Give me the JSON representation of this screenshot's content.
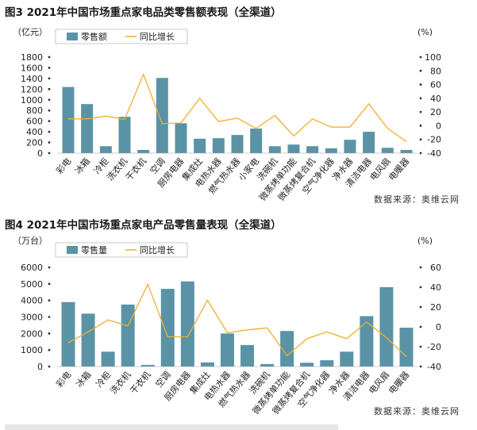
{
  "charts": [
    {
      "figure_title": "图3  2021年中国市场重点家电品类零售额表现（全渠道）",
      "source": "数据来源：奥维云网",
      "left_unit": "（亿元）",
      "right_unit": "(%)",
      "legend": {
        "bar": "零售额",
        "line": "同比增长"
      }
    },
    {
      "figure_title": "图4  2021年中国市场重点家电产品零售量表现（全渠道）",
      "source": "数据来源：奥维云网",
      "left_unit": "（万台）",
      "right_unit": "(%)",
      "legend": {
        "bar": "零售量",
        "line": "同比增长"
      }
    }
  ],
  "colors": {
    "bar": "#5b93a6",
    "line": "#f2ae30"
  },
  "chart_data": [
    {
      "type": "bar",
      "title": "图3  2021年中国市场重点家电品类零售额表现（全渠道）",
      "categories": [
        "彩电",
        "冰箱",
        "冷柜",
        "洗衣机",
        "干衣机",
        "空调",
        "厨房电器",
        "集成灶",
        "电热水器",
        "燃气热水器",
        "小家电",
        "洗碗机",
        "微蒸烤单功能",
        "微蒸烤复合机",
        "空气净化器",
        "净水器",
        "清洁电器",
        "电风扇",
        "电暖器"
      ],
      "series": [
        {
          "name": "零售额",
          "type": "bar",
          "axis": "left",
          "values": [
            1240,
            920,
            130,
            680,
            60,
            1410,
            560,
            270,
            280,
            340,
            460,
            130,
            160,
            130,
            90,
            250,
            400,
            100,
            60
          ]
        },
        {
          "name": "同比增长",
          "type": "line",
          "axis": "right",
          "values": [
            10,
            10,
            14,
            9,
            75,
            3,
            4,
            40,
            6,
            11,
            -4,
            15,
            -15,
            10,
            -2,
            -2,
            32,
            -4,
            -23
          ]
        }
      ],
      "ylim_left": [
        0,
        1800
      ],
      "yticks_left": [
        0,
        200,
        400,
        600,
        800,
        1000,
        1200,
        1400,
        1600,
        1800
      ],
      "ylim_right": [
        -40,
        100
      ],
      "yticks_right": [
        -40,
        -20,
        0,
        20,
        40,
        60,
        80,
        100
      ],
      "legend_position": "top-left",
      "grid": false
    },
    {
      "type": "bar",
      "title": "图4  2021年中国市场重点家电产品零售量表现（全渠道）",
      "categories": [
        "彩电",
        "冰箱",
        "冷柜",
        "洗衣机",
        "干衣机",
        "空调",
        "厨房电器",
        "集成灶",
        "电热水器",
        "燃气热水器",
        "洗碗机",
        "微蒸烤单功能",
        "微蒸烤复合机",
        "空气净化器",
        "净水器",
        "清洁电器",
        "电风扇",
        "电暖器"
      ],
      "series": [
        {
          "name": "零售量",
          "type": "bar",
          "axis": "left",
          "values": [
            3900,
            3200,
            900,
            3750,
            100,
            4700,
            5150,
            250,
            2000,
            1300,
            150,
            2150,
            230,
            380,
            900,
            3050,
            4800,
            2350
          ]
        },
        {
          "name": "同比增长",
          "type": "line",
          "axis": "right",
          "values": [
            -16,
            -5,
            7,
            1,
            43,
            -10,
            -10,
            27,
            -6,
            -3,
            -1,
            -29,
            -12,
            -5,
            -12,
            5,
            -11,
            -30
          ]
        }
      ],
      "ylim_left": [
        0,
        6000
      ],
      "yticks_left": [
        0,
        1000,
        2000,
        3000,
        4000,
        5000,
        6000
      ],
      "ylim_right": [
        -40,
        60
      ],
      "yticks_right": [
        -40,
        -20,
        0,
        20,
        40,
        60
      ],
      "legend_position": "top-left",
      "grid": false
    }
  ]
}
